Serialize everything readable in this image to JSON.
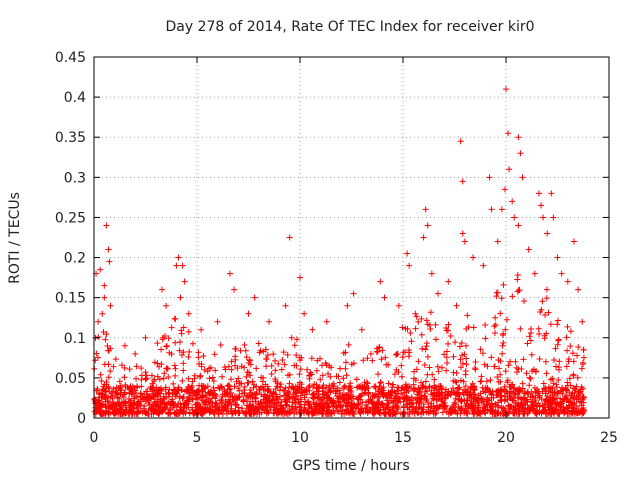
{
  "chart_data": {
    "type": "scatter",
    "title": "Day 278 of 2014, Rate Of TEC Index for receiver kir0",
    "xlabel": "GPS time / hours",
    "ylabel": "ROTI / TECUs",
    "xlim": [
      0,
      25
    ],
    "ylim": [
      0,
      0.45
    ],
    "x_ticks": [
      0,
      5,
      10,
      15,
      20,
      25
    ],
    "y_ticks": [
      0,
      0.05,
      0.1,
      0.15,
      0.2,
      0.25,
      0.3,
      0.35,
      0.4,
      0.45
    ],
    "x_tick_labels": [
      "0",
      "5",
      "10",
      "15",
      "20",
      "25"
    ],
    "y_tick_labels": [
      "0",
      "0.05",
      "0.1",
      "0.15",
      "0.2",
      "0.25",
      "0.3",
      "0.35",
      "0.4",
      "0.45"
    ],
    "grid": true,
    "marker": "+",
    "color": "#ff0000",
    "series": [
      {
        "name": "ROTI",
        "points": [
          [
            0.1,
            0.18
          ],
          [
            0.3,
            0.185
          ],
          [
            0.5,
            0.15
          ],
          [
            0.6,
            0.24
          ],
          [
            0.7,
            0.21
          ],
          [
            0.75,
            0.195
          ],
          [
            0.8,
            0.14
          ],
          [
            0.5,
            0.165
          ],
          [
            0.2,
            0.12
          ],
          [
            0.4,
            0.13
          ],
          [
            1.5,
            0.09
          ],
          [
            2.0,
            0.08
          ],
          [
            2.5,
            0.1
          ],
          [
            3.3,
            0.16
          ],
          [
            3.5,
            0.14
          ],
          [
            4.0,
            0.19
          ],
          [
            4.1,
            0.2
          ],
          [
            4.3,
            0.19
          ],
          [
            4.4,
            0.17
          ],
          [
            4.2,
            0.15
          ],
          [
            4.6,
            0.13
          ],
          [
            5.2,
            0.11
          ],
          [
            6.0,
            0.12
          ],
          [
            6.6,
            0.18
          ],
          [
            6.8,
            0.16
          ],
          [
            7.5,
            0.13
          ],
          [
            7.8,
            0.15
          ],
          [
            8.5,
            0.12
          ],
          [
            9.3,
            0.14
          ],
          [
            9.5,
            0.225
          ],
          [
            10.0,
            0.175
          ],
          [
            10.2,
            0.13
          ],
          [
            10.6,
            0.11
          ],
          [
            11.3,
            0.12
          ],
          [
            12.3,
            0.14
          ],
          [
            12.6,
            0.155
          ],
          [
            13.0,
            0.11
          ],
          [
            13.9,
            0.17
          ],
          [
            14.1,
            0.15
          ],
          [
            14.8,
            0.14
          ],
          [
            15.2,
            0.205
          ],
          [
            15.3,
            0.19
          ],
          [
            15.6,
            0.13
          ],
          [
            16.0,
            0.225
          ],
          [
            16.1,
            0.26
          ],
          [
            16.2,
            0.24
          ],
          [
            16.4,
            0.18
          ],
          [
            16.7,
            0.155
          ],
          [
            17.2,
            0.17
          ],
          [
            17.6,
            0.14
          ],
          [
            17.8,
            0.345
          ],
          [
            17.9,
            0.295
          ],
          [
            17.9,
            0.23
          ],
          [
            18.0,
            0.22
          ],
          [
            18.4,
            0.2
          ],
          [
            18.9,
            0.19
          ],
          [
            19.2,
            0.3
          ],
          [
            19.3,
            0.26
          ],
          [
            19.6,
            0.22
          ],
          [
            19.8,
            0.26
          ],
          [
            19.95,
            0.285
          ],
          [
            20.0,
            0.41
          ],
          [
            20.1,
            0.355
          ],
          [
            20.15,
            0.31
          ],
          [
            20.3,
            0.27
          ],
          [
            20.4,
            0.25
          ],
          [
            20.6,
            0.35
          ],
          [
            20.7,
            0.33
          ],
          [
            20.8,
            0.3
          ],
          [
            20.6,
            0.24
          ],
          [
            21.1,
            0.21
          ],
          [
            21.4,
            0.18
          ],
          [
            21.6,
            0.28
          ],
          [
            21.7,
            0.265
          ],
          [
            21.8,
            0.25
          ],
          [
            22.0,
            0.23
          ],
          [
            22.2,
            0.28
          ],
          [
            22.3,
            0.25
          ],
          [
            22.5,
            0.2
          ],
          [
            22.7,
            0.18
          ],
          [
            23.0,
            0.17
          ],
          [
            23.3,
            0.22
          ],
          [
            23.5,
            0.16
          ],
          [
            23.7,
            0.12
          ]
        ],
        "density_profile": [
          [
            0,
            0.1
          ],
          [
            0.5,
            0.12
          ],
          [
            1,
            0.07
          ],
          [
            1.5,
            0.06
          ],
          [
            2,
            0.06
          ],
          [
            2.5,
            0.07
          ],
          [
            3,
            0.09
          ],
          [
            3.5,
            0.1
          ],
          [
            4,
            0.13
          ],
          [
            4.5,
            0.12
          ],
          [
            5,
            0.08
          ],
          [
            5.5,
            0.07
          ],
          [
            6,
            0.08
          ],
          [
            6.5,
            0.1
          ],
          [
            7,
            0.08
          ],
          [
            7.5,
            0.1
          ],
          [
            8,
            0.09
          ],
          [
            8.5,
            0.08
          ],
          [
            9,
            0.07
          ],
          [
            9.5,
            0.1
          ],
          [
            10,
            0.1
          ],
          [
            10.5,
            0.07
          ],
          [
            11,
            0.07
          ],
          [
            11.5,
            0.06
          ],
          [
            12,
            0.07
          ],
          [
            12.5,
            0.1
          ],
          [
            13,
            0.07
          ],
          [
            13.5,
            0.08
          ],
          [
            14,
            0.1
          ],
          [
            14.5,
            0.06
          ],
          [
            15,
            0.12
          ],
          [
            15.5,
            0.13
          ],
          [
            16,
            0.15
          ],
          [
            16.5,
            0.12
          ],
          [
            17,
            0.11
          ],
          [
            17.5,
            0.13
          ],
          [
            18,
            0.14
          ],
          [
            18.5,
            0.13
          ],
          [
            19,
            0.14
          ],
          [
            19.5,
            0.15
          ],
          [
            20,
            0.17
          ],
          [
            20.5,
            0.18
          ],
          [
            21,
            0.15
          ],
          [
            21.5,
            0.14
          ],
          [
            22,
            0.16
          ],
          [
            22.5,
            0.13
          ],
          [
            23,
            0.12
          ],
          [
            23.5,
            0.1
          ],
          [
            23.8,
            0.08
          ]
        ],
        "x_range": [
          0,
          23.8
        ]
      }
    ]
  }
}
